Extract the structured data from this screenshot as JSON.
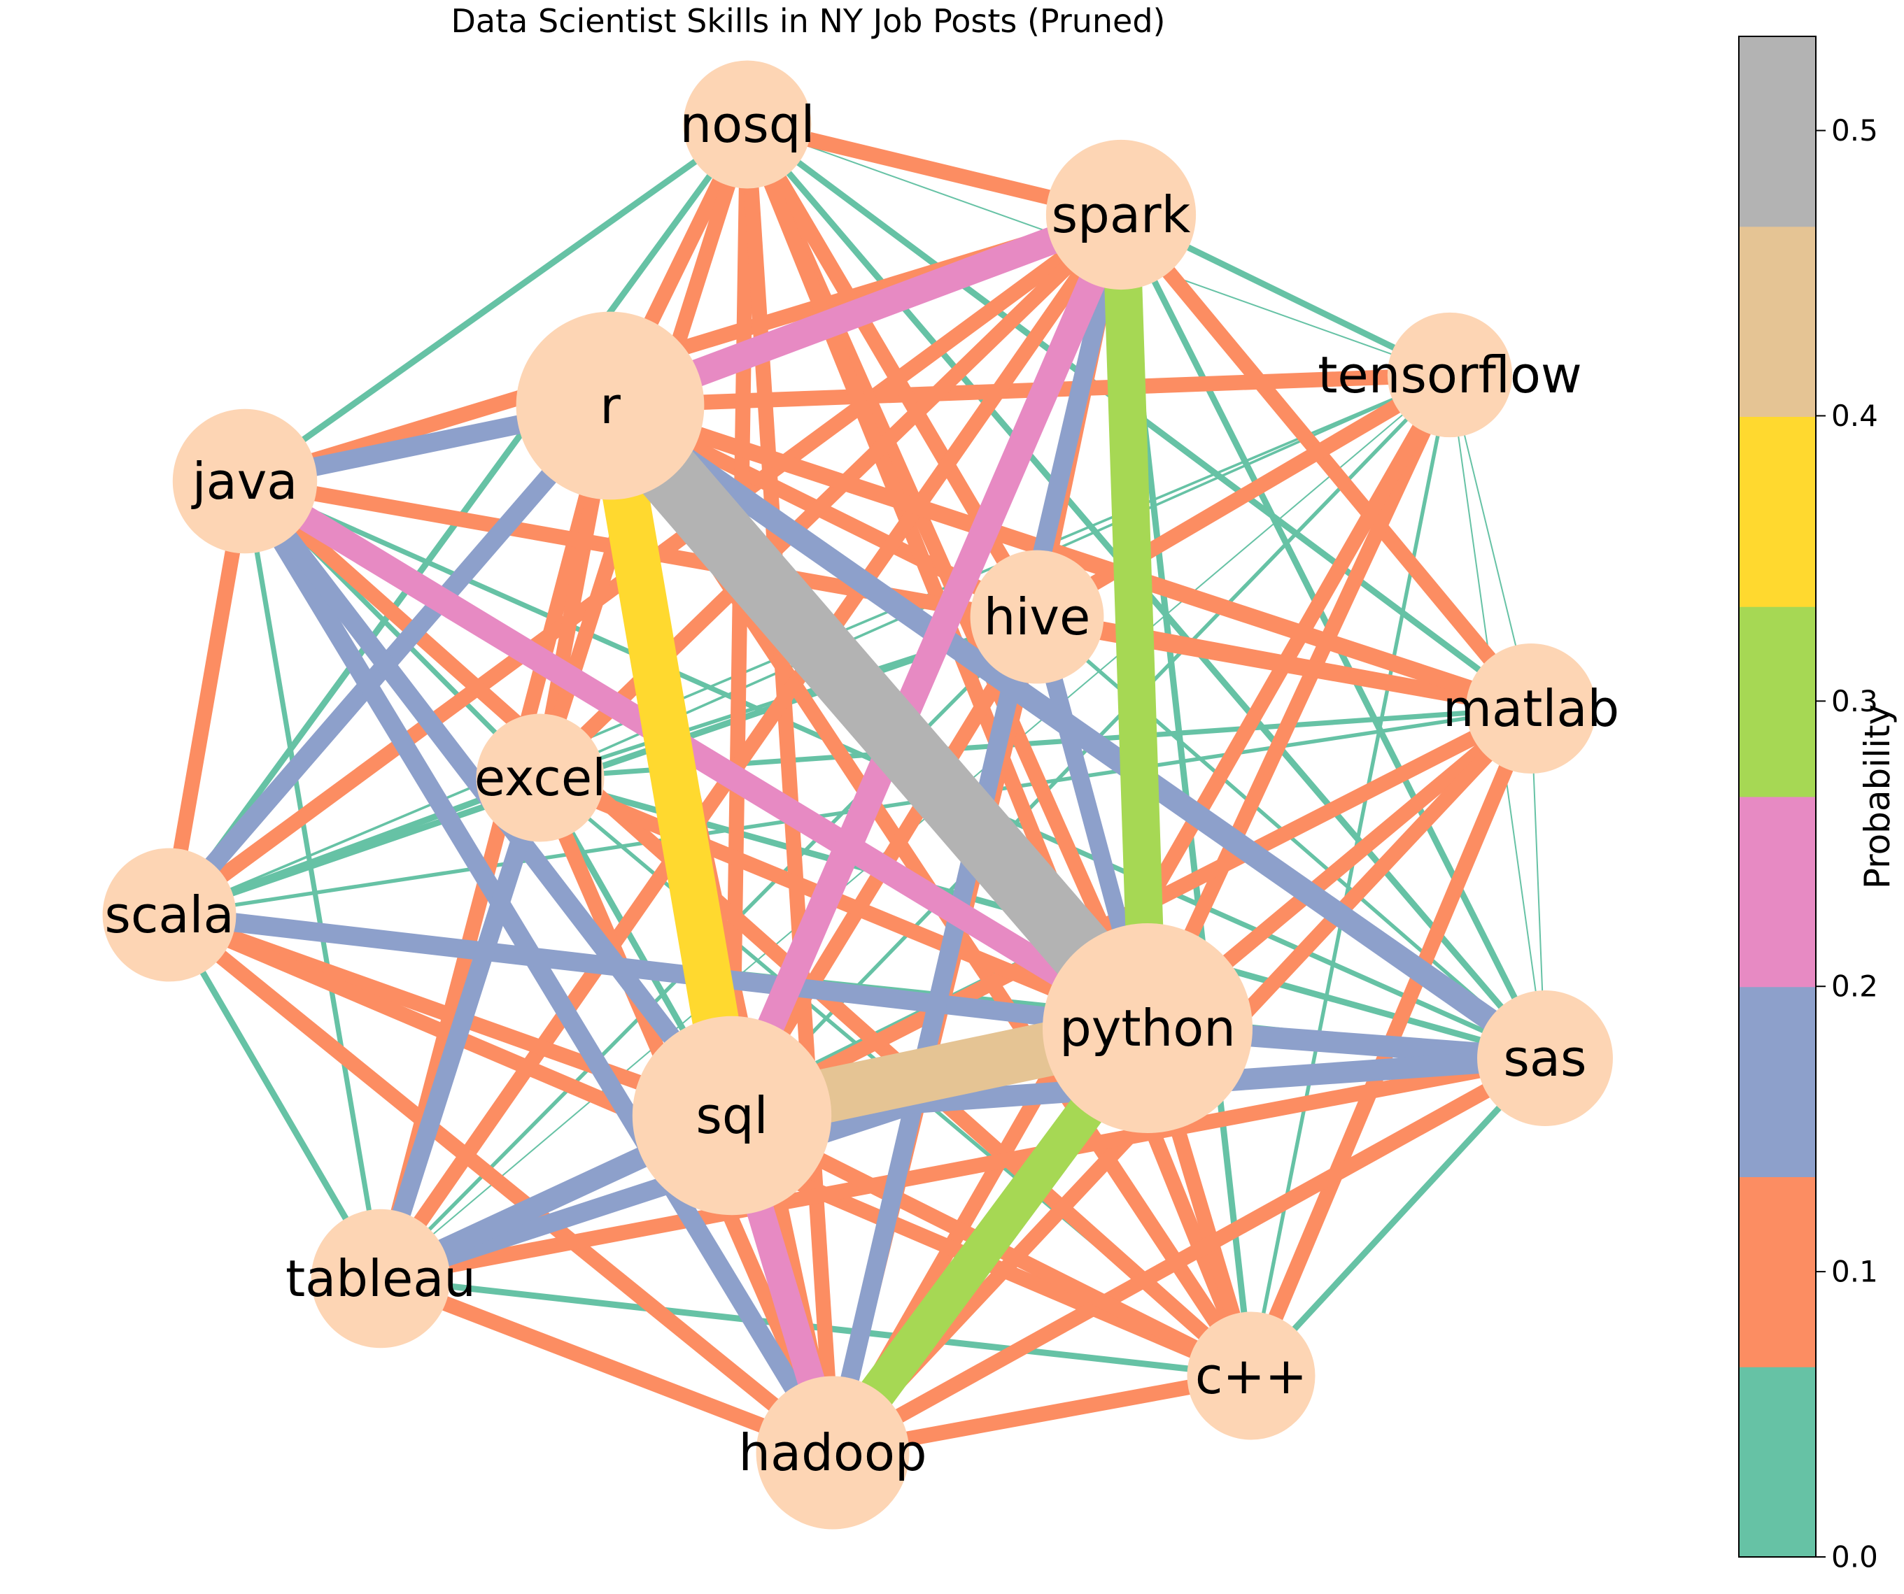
{
  "title": "Data Scientist Skills in NY Job Posts (Pruned)",
  "colorbar": {
    "label": "Probability",
    "ticks": [
      "0.0",
      "0.1",
      "0.2",
      "0.3",
      "0.4",
      "0.5"
    ],
    "tick_values": [
      0.0,
      0.1,
      0.2,
      0.3,
      0.4,
      0.5
    ],
    "range": [
      0.0,
      0.533
    ],
    "colors": [
      "#66c2a5",
      "#fc8d62",
      "#8da0cb",
      "#e78ac3",
      "#a6d854",
      "#ffd92f",
      "#e5c494",
      "#b3b3b3"
    ]
  },
  "nodes": [
    {
      "id": "nosql",
      "label": "nosql",
      "size": 0.25
    },
    {
      "id": "spark",
      "label": "spark",
      "size": 0.45
    },
    {
      "id": "tensorflow",
      "label": "tensorflow",
      "size": 0.22
    },
    {
      "id": "r",
      "label": "r",
      "size": 0.8
    },
    {
      "id": "java",
      "label": "java",
      "size": 0.4
    },
    {
      "id": "hive",
      "label": "hive",
      "size": 0.3
    },
    {
      "id": "matlab",
      "label": "matlab",
      "size": 0.27
    },
    {
      "id": "excel",
      "label": "excel",
      "size": 0.25
    },
    {
      "id": "scala",
      "label": "scala",
      "size": 0.3
    },
    {
      "id": "python",
      "label": "python",
      "size": 1.0
    },
    {
      "id": "sas",
      "label": "sas",
      "size": 0.32
    },
    {
      "id": "sql",
      "label": "sql",
      "size": 0.9
    },
    {
      "id": "tableau",
      "label": "tableau",
      "size": 0.35
    },
    {
      "id": "cpp",
      "label": "c++",
      "size": 0.25
    },
    {
      "id": "hadoop",
      "label": "hadoop",
      "size": 0.48
    }
  ],
  "edges": [
    {
      "source": "r",
      "target": "python",
      "weight": 0.52
    },
    {
      "source": "python",
      "target": "sql",
      "weight": 0.43
    },
    {
      "source": "r",
      "target": "sql",
      "weight": 0.37
    },
    {
      "source": "spark",
      "target": "python",
      "weight": 0.3
    },
    {
      "source": "python",
      "target": "hadoop",
      "weight": 0.3
    },
    {
      "source": "spark",
      "target": "r",
      "weight": 0.22
    },
    {
      "source": "spark",
      "target": "sql",
      "weight": 0.22
    },
    {
      "source": "sql",
      "target": "hadoop",
      "weight": 0.22
    },
    {
      "source": "java",
      "target": "python",
      "weight": 0.2
    },
    {
      "source": "r",
      "target": "sas",
      "weight": 0.18
    },
    {
      "source": "python",
      "target": "sas",
      "weight": 0.17
    },
    {
      "source": "sql",
      "target": "sas",
      "weight": 0.17
    },
    {
      "source": "sql",
      "target": "tableau",
      "weight": 0.17
    },
    {
      "source": "r",
      "target": "java",
      "weight": 0.15
    },
    {
      "source": "r",
      "target": "scala",
      "weight": 0.15
    },
    {
      "source": "java",
      "target": "hadoop",
      "weight": 0.15
    },
    {
      "source": "java",
      "target": "sql",
      "weight": 0.15
    },
    {
      "source": "scala",
      "target": "python",
      "weight": 0.15
    },
    {
      "source": "excel",
      "target": "tableau",
      "weight": 0.15
    },
    {
      "source": "python",
      "target": "tableau",
      "weight": 0.15
    },
    {
      "source": "spark",
      "target": "hadoop",
      "weight": 0.15
    },
    {
      "source": "hive",
      "target": "python",
      "weight": 0.14
    },
    {
      "source": "r",
      "target": "matlab",
      "weight": 0.13
    },
    {
      "source": "r",
      "target": "tableau",
      "weight": 0.12
    },
    {
      "source": "spark",
      "target": "scala",
      "weight": 0.12
    },
    {
      "source": "spark",
      "target": "java",
      "weight": 0.12
    },
    {
      "source": "r",
      "target": "tensorflow",
      "weight": 0.12
    },
    {
      "source": "r",
      "target": "nosql",
      "weight": 0.12
    },
    {
      "source": "r",
      "target": "cpp",
      "weight": 0.12
    },
    {
      "source": "r",
      "target": "hive",
      "weight": 0.12
    },
    {
      "source": "r",
      "target": "excel",
      "weight": 0.12
    },
    {
      "source": "r",
      "target": "hadoop",
      "weight": 0.12
    },
    {
      "source": "nosql",
      "target": "spark",
      "weight": 0.12
    },
    {
      "source": "nosql",
      "target": "sql",
      "weight": 0.12
    },
    {
      "source": "nosql",
      "target": "python",
      "weight": 0.12
    },
    {
      "source": "nosql",
      "target": "hadoop",
      "weight": 0.12
    },
    {
      "source": "nosql",
      "target": "hive",
      "weight": 0.12
    },
    {
      "source": "nosql",
      "target": "excel",
      "weight": 0.12
    },
    {
      "source": "nosql",
      "target": "cpp",
      "weight": 0.12
    },
    {
      "source": "spark",
      "target": "matlab",
      "weight": 0.12
    },
    {
      "source": "spark",
      "target": "hive",
      "weight": 0.12
    },
    {
      "source": "spark",
      "target": "tableau",
      "weight": 0.12
    },
    {
      "source": "spark",
      "target": "excel",
      "weight": 0.12
    },
    {
      "source": "tensorflow",
      "target": "python",
      "weight": 0.12
    },
    {
      "source": "tensorflow",
      "target": "hadoop",
      "weight": 0.12
    },
    {
      "source": "tensorflow",
      "target": "hive",
      "weight": 0.12
    },
    {
      "source": "java",
      "target": "scala",
      "weight": 0.12
    },
    {
      "source": "java",
      "target": "matlab",
      "weight": 0.12
    },
    {
      "source": "java",
      "target": "cpp",
      "weight": 0.12
    },
    {
      "source": "hive",
      "target": "matlab",
      "weight": 0.12
    },
    {
      "source": "hive",
      "target": "sql",
      "weight": 0.12
    },
    {
      "source": "hive",
      "target": "hadoop",
      "weight": 0.12
    },
    {
      "source": "matlab",
      "target": "python",
      "weight": 0.12
    },
    {
      "source": "matlab",
      "target": "sql",
      "weight": 0.12
    },
    {
      "source": "matlab",
      "target": "cpp",
      "weight": 0.12
    },
    {
      "source": "matlab",
      "target": "hadoop",
      "weight": 0.12
    },
    {
      "source": "excel",
      "target": "python",
      "weight": 0.12
    },
    {
      "source": "excel",
      "target": "hadoop",
      "weight": 0.12
    },
    {
      "source": "scala",
      "target": "sql",
      "weight": 0.12
    },
    {
      "source": "scala",
      "target": "hadoop",
      "weight": 0.12
    },
    {
      "source": "scala",
      "target": "cpp",
      "weight": 0.12
    },
    {
      "source": "python",
      "target": "cpp",
      "weight": 0.12
    },
    {
      "source": "sas",
      "target": "tableau",
      "weight": 0.12
    },
    {
      "source": "sas",
      "target": "hadoop",
      "weight": 0.12
    },
    {
      "source": "sql",
      "target": "cpp",
      "weight": 0.12
    },
    {
      "source": "tableau",
      "target": "hadoop",
      "weight": 0.12
    },
    {
      "source": "cpp",
      "target": "hadoop",
      "weight": 0.12
    },
    {
      "source": "nosql",
      "target": "java",
      "weight": 0.05
    },
    {
      "source": "nosql",
      "target": "scala",
      "weight": 0.05
    },
    {
      "source": "nosql",
      "target": "tableau",
      "weight": 0.05
    },
    {
      "source": "nosql",
      "target": "matlab",
      "weight": 0.05
    },
    {
      "source": "nosql",
      "target": "sas",
      "weight": 0.05
    },
    {
      "source": "nosql",
      "target": "tensorflow",
      "weight": 0.01
    },
    {
      "source": "spark",
      "target": "tensorflow",
      "weight": 0.05
    },
    {
      "source": "spark",
      "target": "sas",
      "weight": 0.05
    },
    {
      "source": "spark",
      "target": "cpp",
      "weight": 0.05
    },
    {
      "source": "tensorflow",
      "target": "matlab",
      "weight": 0.01
    },
    {
      "source": "tensorflow",
      "target": "sas",
      "weight": 0.01
    },
    {
      "source": "tensorflow",
      "target": "cpp",
      "weight": 0.03
    },
    {
      "source": "tensorflow",
      "target": "excel",
      "weight": 0.02
    },
    {
      "source": "tensorflow",
      "target": "sql",
      "weight": 0.03
    },
    {
      "source": "tensorflow",
      "target": "scala",
      "weight": 0.02
    },
    {
      "source": "tensorflow",
      "target": "tableau",
      "weight": 0.01
    },
    {
      "source": "java",
      "target": "excel",
      "weight": 0.04
    },
    {
      "source": "java",
      "target": "tableau",
      "weight": 0.04
    },
    {
      "source": "java",
      "target": "hive",
      "weight": 0.05
    },
    {
      "source": "java",
      "target": "sas",
      "weight": 0.04
    },
    {
      "source": "hive",
      "target": "excel",
      "weight": 0.03
    },
    {
      "source": "hive",
      "target": "scala",
      "weight": 0.05
    },
    {
      "source": "hive",
      "target": "sas",
      "weight": 0.03
    },
    {
      "source": "hive",
      "target": "tableau",
      "weight": 0.03
    },
    {
      "source": "hive",
      "target": "cpp",
      "weight": 0.03
    },
    {
      "source": "matlab",
      "target": "excel",
      "weight": 0.04
    },
    {
      "source": "matlab",
      "target": "sas",
      "weight": 0.01
    },
    {
      "source": "matlab",
      "target": "tableau",
      "weight": 0.03
    },
    {
      "source": "matlab",
      "target": "scala",
      "weight": 0.03
    },
    {
      "source": "excel",
      "target": "scala",
      "weight": 0.05
    },
    {
      "source": "excel",
      "target": "sql",
      "weight": 0.05
    },
    {
      "source": "excel",
      "target": "sas",
      "weight": 0.05
    },
    {
      "source": "excel",
      "target": "cpp",
      "weight": 0.03
    },
    {
      "source": "scala",
      "target": "sas",
      "weight": 0.05
    },
    {
      "source": "scala",
      "target": "tableau",
      "weight": 0.05
    },
    {
      "source": "sas",
      "target": "cpp",
      "weight": 0.05
    },
    {
      "source": "tableau",
      "target": "cpp",
      "weight": 0.05
    }
  ]
}
